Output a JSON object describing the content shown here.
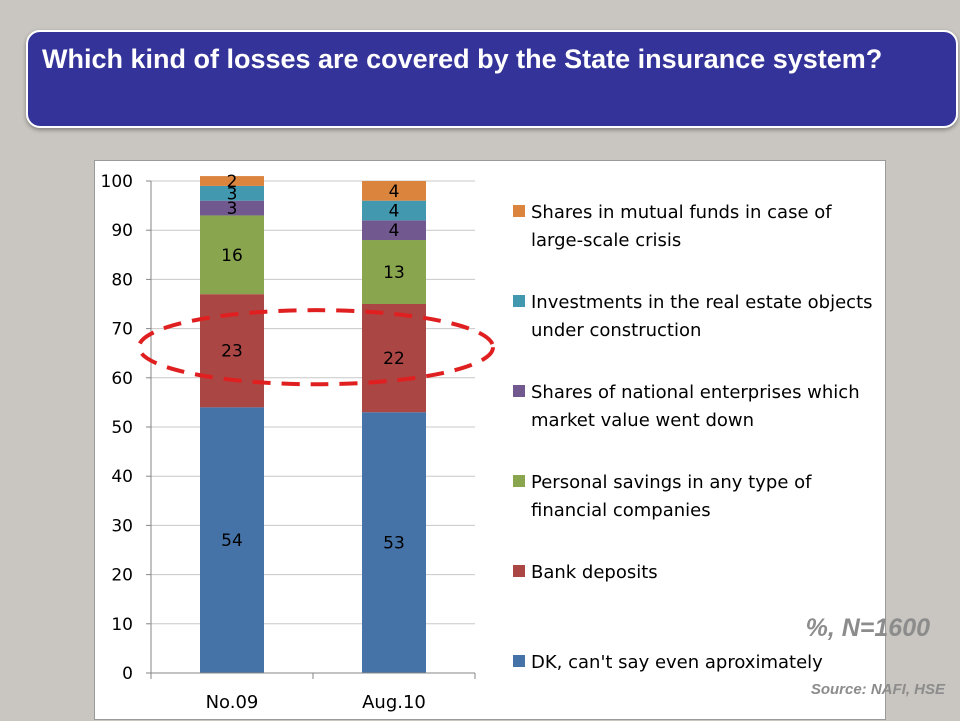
{
  "slide": {
    "title": "Which kind of losses are covered by the State insurance system?",
    "sample_note": "%, N=1600",
    "source_note": "Source:  NAFI, HSE"
  },
  "chart_data": {
    "type": "bar",
    "stacked": true,
    "categories": [
      "No.09",
      "Aug.10"
    ],
    "series": [
      {
        "name": "DK, can't say even aproximately",
        "values": [
          54,
          53
        ],
        "color": "#4573a7"
      },
      {
        "name": "Bank deposits",
        "values": [
          23,
          22
        ],
        "color": "#aa4643"
      },
      {
        "name": "Personal savings in any type of financial companies",
        "values": [
          16,
          13
        ],
        "color": "#89a54e"
      },
      {
        "name": "Shares of national enterprises which market value went down",
        "values": [
          3,
          4
        ],
        "color": "#71588f"
      },
      {
        "name": "Investments in the real estate objects under construction",
        "values": [
          3,
          4
        ],
        "color": "#4198af"
      },
      {
        "name": "Shares in mutual funds in case of large-scale crisis",
        "values": [
          2,
          4
        ],
        "color": "#db843d"
      }
    ],
    "legend_order": [
      5,
      4,
      3,
      2,
      1,
      0
    ],
    "ylim": [
      0,
      100
    ],
    "yticks": [
      0,
      10,
      20,
      30,
      40,
      50,
      60,
      70,
      80,
      90,
      100
    ],
    "grid": true,
    "legend_position": "right",
    "annotation": {
      "type": "dashed-ellipse",
      "color": "#e02020",
      "highlights_series": "Bank deposits"
    }
  }
}
